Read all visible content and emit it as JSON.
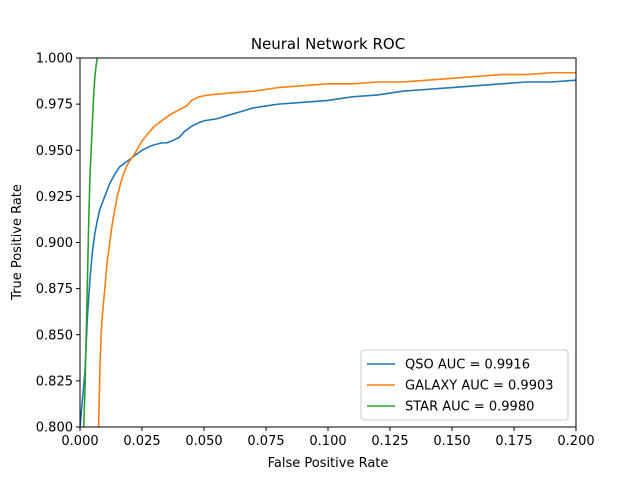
{
  "chart_data": {
    "type": "line",
    "title": "Neural Network ROC",
    "xlabel": "False Positive Rate",
    "ylabel": "True Positive Rate",
    "xlim": [
      0.0,
      0.2
    ],
    "ylim": [
      0.8,
      1.0
    ],
    "xticks": [
      "0.000",
      "0.025",
      "0.050",
      "0.075",
      "0.100",
      "0.125",
      "0.150",
      "0.175",
      "0.200"
    ],
    "yticks": [
      "0.800",
      "0.825",
      "0.850",
      "0.875",
      "0.900",
      "0.925",
      "0.950",
      "0.975",
      "1.000"
    ],
    "grid": false,
    "legend_position": "lower-right",
    "series": [
      {
        "name": "QSO AUC = 0.9916",
        "color": "#1f77b4",
        "points": [
          [
            0.0,
            0.8
          ],
          [
            0.002,
            0.83
          ],
          [
            0.003,
            0.86
          ],
          [
            0.004,
            0.88
          ],
          [
            0.005,
            0.895
          ],
          [
            0.006,
            0.905
          ],
          [
            0.007,
            0.912
          ],
          [
            0.008,
            0.918
          ],
          [
            0.01,
            0.925
          ],
          [
            0.012,
            0.932
          ],
          [
            0.014,
            0.937
          ],
          [
            0.016,
            0.941
          ],
          [
            0.018,
            0.943
          ],
          [
            0.02,
            0.945
          ],
          [
            0.022,
            0.947
          ],
          [
            0.025,
            0.95
          ],
          [
            0.028,
            0.952
          ],
          [
            0.03,
            0.953
          ],
          [
            0.033,
            0.954
          ],
          [
            0.035,
            0.954
          ],
          [
            0.037,
            0.955
          ],
          [
            0.04,
            0.957
          ],
          [
            0.042,
            0.96
          ],
          [
            0.045,
            0.963
          ],
          [
            0.048,
            0.965
          ],
          [
            0.05,
            0.966
          ],
          [
            0.055,
            0.967
          ],
          [
            0.06,
            0.969
          ],
          [
            0.065,
            0.971
          ],
          [
            0.07,
            0.973
          ],
          [
            0.075,
            0.974
          ],
          [
            0.08,
            0.975
          ],
          [
            0.09,
            0.976
          ],
          [
            0.1,
            0.977
          ],
          [
            0.105,
            0.978
          ],
          [
            0.11,
            0.979
          ],
          [
            0.12,
            0.98
          ],
          [
            0.13,
            0.982
          ],
          [
            0.14,
            0.983
          ],
          [
            0.15,
            0.984
          ],
          [
            0.16,
            0.985
          ],
          [
            0.17,
            0.986
          ],
          [
            0.18,
            0.987
          ],
          [
            0.19,
            0.987
          ],
          [
            0.2,
            0.988
          ]
        ]
      },
      {
        "name": "GALAXY AUC = 0.9903",
        "color": "#ff7f0e",
        "points": [
          [
            0.0075,
            0.8
          ],
          [
            0.008,
            0.83
          ],
          [
            0.0085,
            0.85
          ],
          [
            0.009,
            0.86
          ],
          [
            0.01,
            0.875
          ],
          [
            0.011,
            0.89
          ],
          [
            0.012,
            0.9
          ],
          [
            0.013,
            0.91
          ],
          [
            0.015,
            0.925
          ],
          [
            0.017,
            0.935
          ],
          [
            0.019,
            0.942
          ],
          [
            0.022,
            0.948
          ],
          [
            0.025,
            0.955
          ],
          [
            0.028,
            0.96
          ],
          [
            0.03,
            0.963
          ],
          [
            0.033,
            0.966
          ],
          [
            0.036,
            0.969
          ],
          [
            0.04,
            0.972
          ],
          [
            0.043,
            0.974
          ],
          [
            0.045,
            0.977
          ],
          [
            0.048,
            0.979
          ],
          [
            0.052,
            0.98
          ],
          [
            0.06,
            0.981
          ],
          [
            0.07,
            0.982
          ],
          [
            0.08,
            0.984
          ],
          [
            0.09,
            0.985
          ],
          [
            0.1,
            0.986
          ],
          [
            0.11,
            0.986
          ],
          [
            0.12,
            0.987
          ],
          [
            0.13,
            0.987
          ],
          [
            0.14,
            0.988
          ],
          [
            0.15,
            0.989
          ],
          [
            0.16,
            0.99
          ],
          [
            0.17,
            0.991
          ],
          [
            0.18,
            0.991
          ],
          [
            0.19,
            0.992
          ],
          [
            0.2,
            0.992
          ]
        ]
      },
      {
        "name": "STAR AUC = 0.9980",
        "color": "#2ca02c",
        "points": [
          [
            0.0015,
            0.8
          ],
          [
            0.002,
            0.82
          ],
          [
            0.0025,
            0.85
          ],
          [
            0.003,
            0.88
          ],
          [
            0.0035,
            0.91
          ],
          [
            0.004,
            0.935
          ],
          [
            0.0045,
            0.95
          ],
          [
            0.005,
            0.965
          ],
          [
            0.0055,
            0.98
          ],
          [
            0.006,
            0.99
          ],
          [
            0.0065,
            0.996
          ],
          [
            0.007,
            1.0
          ]
        ]
      }
    ]
  }
}
